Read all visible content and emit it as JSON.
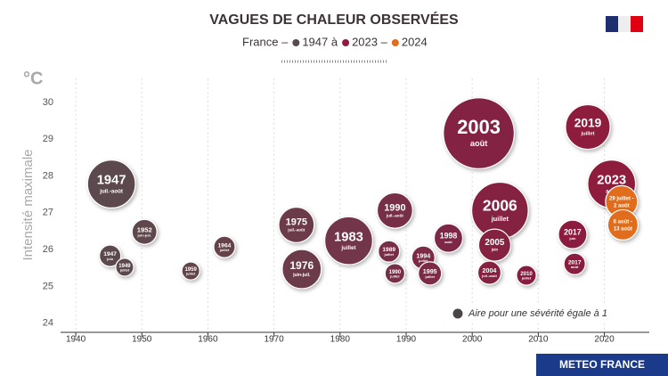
{
  "chart_data": {
    "type": "bubble",
    "title": "VAGUES DE CHALEUR OBSERVÉES",
    "subtitle_parts": [
      {
        "text": "France –"
      },
      {
        "text": "1947 à",
        "color": "#5b4a4d"
      },
      {
        "text": "2023 –",
        "color": "#8e1b3d"
      },
      {
        "text": "2024",
        "color": "#e06c1e"
      }
    ],
    "y_unit": "°C",
    "ylabel": "Intensité maximale",
    "xlim": [
      1937.7,
      2026.8
    ],
    "ylim": [
      23.75,
      30.65
    ],
    "xticks": [
      1940,
      1950,
      1960,
      1970,
      1980,
      1990,
      2000,
      2010,
      2020
    ],
    "yticks": [
      24,
      25,
      26,
      27,
      28,
      29,
      30
    ],
    "grid": true,
    "size_legend": {
      "label": "Aire pour une sévérité égale à 1",
      "size": 1
    },
    "points": [
      {
        "label": "1947",
        "sublabel": "juil.-août",
        "x": 1945.4,
        "y": 27.78,
        "size": 20,
        "color": "#5b4a4d"
      },
      {
        "label": "1947",
        "sublabel": "juin",
        "x": 1945.2,
        "y": 25.83,
        "size": 4,
        "color": "#5b4a4d"
      },
      {
        "label": "1949",
        "sublabel": "juillet",
        "x": 1947.4,
        "y": 25.52,
        "size": 2.8,
        "color": "#5b4a4d"
      },
      {
        "label": "1952",
        "sublabel": "juin-juil.",
        "x": 1950.4,
        "y": 26.48,
        "size": 5.4,
        "color": "#5e474c"
      },
      {
        "label": "1959",
        "sublabel": "juillet",
        "x": 1957.4,
        "y": 25.42,
        "size": 2.8,
        "color": "#62454c"
      },
      {
        "label": "1964",
        "sublabel": "juillet",
        "x": 1962.5,
        "y": 26.07,
        "size": 4,
        "color": "#66424b"
      },
      {
        "label": "1975",
        "sublabel": "juil.-août",
        "x": 1973.4,
        "y": 26.67,
        "size": 11,
        "color": "#6c3b4a"
      },
      {
        "label": "1976",
        "sublabel": "juin-juil.",
        "x": 1974.2,
        "y": 25.47,
        "size": 13.4,
        "color": "#6c3b4a"
      },
      {
        "label": "1983",
        "sublabel": "juillet",
        "x": 1981.3,
        "y": 26.24,
        "size": 20,
        "color": "#723448"
      },
      {
        "label": "1990",
        "sublabel": "juil.-août",
        "x": 1988.3,
        "y": 27.06,
        "size": 11,
        "color": "#772e46"
      },
      {
        "label": "1989",
        "sublabel": "juillet",
        "x": 1987.4,
        "y": 25.95,
        "size": 4,
        "color": "#772e46"
      },
      {
        "label": "1990",
        "sublabel": "juillet",
        "x": 1988.3,
        "y": 25.35,
        "size": 3.4,
        "color": "#772e46"
      },
      {
        "label": "1994",
        "sublabel": "juillet",
        "x": 1992.6,
        "y": 25.78,
        "size": 4.7,
        "color": "#7b2a45"
      },
      {
        "label": "1995",
        "sublabel": "juillet",
        "x": 1993.6,
        "y": 25.35,
        "size": 4.7,
        "color": "#7b2a45"
      },
      {
        "label": "1998",
        "sublabel": "août",
        "x": 1996.4,
        "y": 26.31,
        "size": 7.1,
        "color": "#7e2744"
      },
      {
        "label": "2003",
        "sublabel": "août",
        "x": 2001.0,
        "y": 29.16,
        "size": 44,
        "color": "#832342"
      },
      {
        "label": "2006",
        "sublabel": "juillet",
        "x": 2004.2,
        "y": 27.06,
        "size": 28,
        "color": "#852142"
      },
      {
        "label": "2005",
        "sublabel": "juin",
        "x": 2003.4,
        "y": 26.12,
        "size": 9,
        "color": "#852142"
      },
      {
        "label": "2004",
        "sublabel": "juil.-août",
        "x": 2002.6,
        "y": 25.37,
        "size": 4.7,
        "color": "#852142"
      },
      {
        "label": "2010",
        "sublabel": "juillet",
        "x": 2008.2,
        "y": 25.3,
        "size": 3.4,
        "color": "#881f41"
      },
      {
        "label": "2017",
        "sublabel": "juin",
        "x": 2015.2,
        "y": 26.41,
        "size": 7.1,
        "color": "#8b1c3f"
      },
      {
        "label": "2017",
        "sublabel": "août",
        "x": 2015.5,
        "y": 25.61,
        "size": 4,
        "color": "#8b1c3f"
      },
      {
        "label": "2019",
        "sublabel": "juillet",
        "x": 2017.5,
        "y": 29.33,
        "size": 17.4,
        "color": "#8d1b3e"
      },
      {
        "label": "2023",
        "sublabel": "août",
        "x": 2021.1,
        "y": 27.78,
        "size": 20,
        "color": "#8e1b3d"
      },
      {
        "label": "29 juillet - 2 août",
        "x": 2022.6,
        "y": 27.3,
        "size": 9,
        "color": "#e06c1e"
      },
      {
        "label": "6 août - 13 août",
        "x": 2022.8,
        "y": 26.67,
        "size": 8,
        "color": "#e06c1e"
      }
    ]
  },
  "footer": {
    "brand": "METEO FRANCE"
  }
}
